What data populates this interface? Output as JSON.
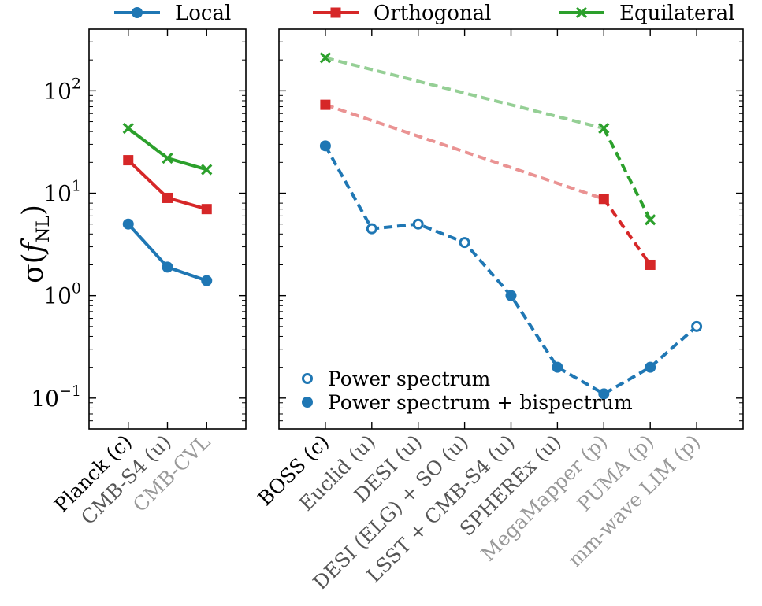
{
  "colors": {
    "local": "#1f77b4",
    "orthogonal": "#d62728",
    "equilateral": "#2ca02c",
    "label_black": "#000000",
    "label_dark_gray": "#555555",
    "label_light_gray": "#999999"
  },
  "chart_data": [
    {
      "type": "line",
      "panel": "left",
      "ylabel_main": "σ(",
      "ylabel_sub": "NL",
      "ylabel_f": "f",
      "ylabel_close": ")",
      "yscale": "log",
      "ylim": [
        0.05,
        400
      ],
      "y_tick_mantissa": "10",
      "y_tick_exponents": [
        "−1",
        "0",
        "1",
        "2"
      ],
      "y_tick_values": [
        0.1,
        1,
        10,
        100
      ],
      "categories": [
        "Planck (c)",
        "CMB-S4 (u)",
        "CMB-CVL"
      ],
      "category_shade": [
        "black",
        "dark",
        "light"
      ],
      "series": [
        {
          "name": "Local",
          "key": "local",
          "marker": "circle",
          "linestyle": "solid",
          "values": [
            5.0,
            1.9,
            1.4
          ]
        },
        {
          "name": "Orthogonal",
          "key": "orthogonal",
          "marker": "square",
          "linestyle": "solid",
          "values": [
            21,
            9,
            7
          ]
        },
        {
          "name": "Equilateral",
          "key": "equilateral",
          "marker": "x",
          "linestyle": "solid",
          "values": [
            43,
            22,
            17
          ]
        }
      ]
    },
    {
      "type": "line",
      "panel": "right",
      "yscale": "log",
      "ylim": [
        0.05,
        400
      ],
      "categories": [
        "BOSS (c)",
        "Euclid (u)",
        "DESI (u)",
        "DESI (ELG) + SO (u)",
        "LSST + CMB-S4 (u)",
        "SPHEREx (u)",
        "MegaMapper (p)",
        "PUMA (p)",
        "mm-wave LIM (p)"
      ],
      "category_shade": [
        "black",
        "dark",
        "dark",
        "dark",
        "dark",
        "dark",
        "light",
        "light",
        "light"
      ],
      "series": [
        {
          "name": "Local",
          "key": "local",
          "linestyle": "dashed",
          "values": [
            29,
            4.5,
            5.0,
            3.3,
            1.0,
            0.2,
            0.11,
            0.2,
            0.5
          ],
          "filled": [
            true,
            false,
            false,
            false,
            true,
            true,
            true,
            true,
            false
          ]
        },
        {
          "name": "Orthogonal",
          "key": "orthogonal",
          "marker": "square",
          "linestyle": "dashed",
          "points": [
            {
              "index": 0,
              "value": 73
            },
            {
              "index": 6,
              "value": 8.8
            },
            {
              "index": 7,
              "value": 2.0
            }
          ]
        },
        {
          "name": "Equilateral",
          "key": "equilateral",
          "marker": "x",
          "linestyle": "dashed",
          "points": [
            {
              "index": 0,
              "value": 210
            },
            {
              "index": 6,
              "value": 43
            },
            {
              "index": 7,
              "value": 5.5
            }
          ]
        }
      ]
    }
  ],
  "legend_top": [
    "Local",
    "Orthogonal",
    "Equilateral"
  ],
  "legend_inner": [
    "Power spectrum",
    "Power spectrum + bispectrum"
  ]
}
